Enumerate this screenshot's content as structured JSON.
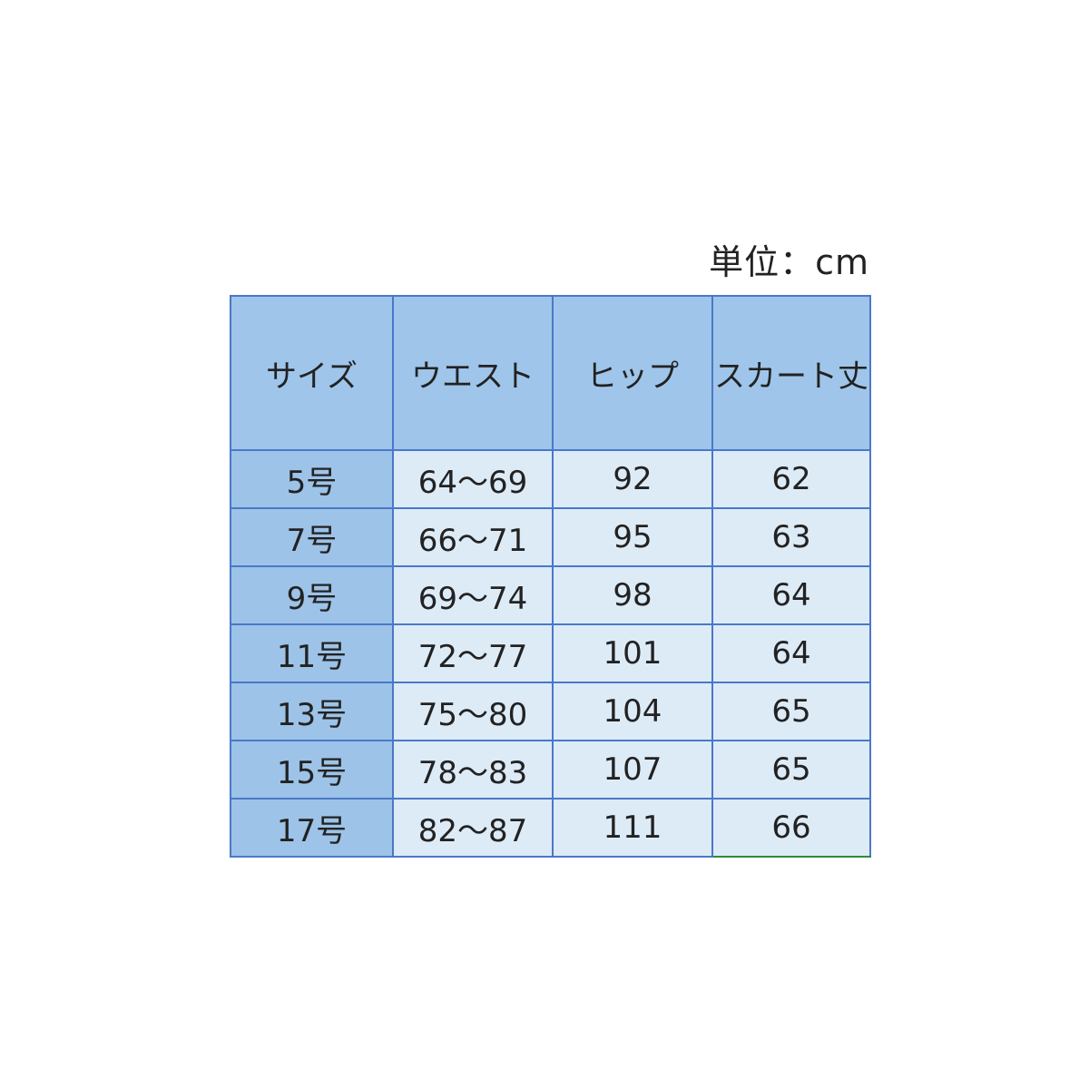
{
  "unit_label": "単位：cm",
  "table": {
    "header": [
      "サイズ",
      "ウエスト",
      "ヒップ",
      "スカート丈"
    ],
    "rows": [
      [
        "5号",
        "64～69",
        92,
        62
      ],
      [
        "7号",
        "66～71",
        95,
        63
      ],
      [
        "9号",
        "69～74",
        98,
        64
      ],
      [
        "11号",
        "72～77",
        101,
        64
      ],
      [
        "13号",
        "75～80",
        104,
        65
      ],
      [
        "15号",
        "78～83",
        107,
        65
      ],
      [
        "17号",
        "82～87",
        111,
        66
      ]
    ]
  }
}
